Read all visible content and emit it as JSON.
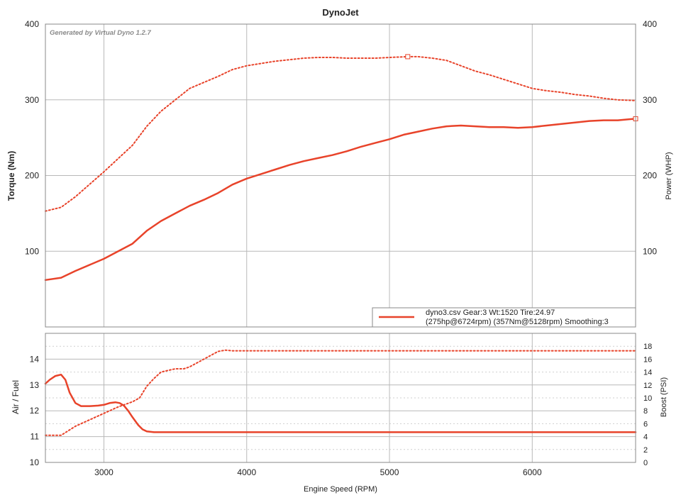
{
  "title": "DynoJet",
  "watermark": "Generated by Virtual Dyno 1.2.7",
  "colors": {
    "series": "#e8432a",
    "grid": "#b8b8b8",
    "frame": "#888888",
    "text": "#222222"
  },
  "legend": {
    "line1": "dyno3.csv Gear:3 Wt:1520 Tire:24.97",
    "line2": "(275hp@6724rpm) (357Nm@5128rpm) Smoothing:3"
  },
  "chart_data": [
    {
      "type": "line",
      "xlabel": "",
      "ylabel_left": "Torque (Nm)",
      "ylabel_right": "Power (WHP)",
      "xlim": [
        2590,
        6724
      ],
      "ylim_left": [
        0,
        400
      ],
      "ylim_right": [
        0,
        400
      ],
      "x_ticks": [
        3000,
        4000,
        5000,
        6000
      ],
      "y_ticks_left": [
        100,
        200,
        300,
        400
      ],
      "y_ticks_right": [
        100,
        200,
        300,
        400
      ],
      "grid": true,
      "legend_position": "bottom-right",
      "series": [
        {
          "axis": "right",
          "style": "solid",
          "x": [
            2590,
            2700,
            2800,
            3000,
            3200,
            3300,
            3400,
            3500,
            3600,
            3700,
            3800,
            3900,
            4000,
            4100,
            4200,
            4300,
            4400,
            4500,
            4600,
            4700,
            4800,
            4900,
            5000,
            5100,
            5200,
            5300,
            5400,
            5500,
            5600,
            5700,
            5800,
            5900,
            6000,
            6100,
            6200,
            6300,
            6400,
            6500,
            6600,
            6724
          ],
          "y": [
            62,
            65,
            74,
            90,
            110,
            127,
            140,
            150,
            160,
            168,
            177,
            188,
            196,
            202,
            208,
            214,
            219,
            223,
            227,
            232,
            238,
            243,
            248,
            254,
            258,
            262,
            265,
            266,
            265,
            264,
            264,
            263,
            264,
            266,
            268,
            270,
            272,
            273,
            273,
            275
          ]
        },
        {
          "axis": "left",
          "style": "dotted",
          "x": [
            2590,
            2700,
            2800,
            3000,
            3200,
            3300,
            3400,
            3500,
            3600,
            3700,
            3800,
            3900,
            4000,
            4100,
            4200,
            4300,
            4400,
            4500,
            4600,
            4700,
            4800,
            4900,
            5000,
            5128,
            5200,
            5300,
            5400,
            5500,
            5600,
            5700,
            5800,
            5900,
            6000,
            6100,
            6200,
            6300,
            6400,
            6500,
            6600,
            6724
          ],
          "y": [
            153,
            158,
            172,
            205,
            240,
            265,
            285,
            300,
            315,
            323,
            331,
            340,
            345,
            348,
            351,
            353,
            355,
            356,
            356,
            355,
            355,
            355,
            356,
            357,
            357,
            355,
            352,
            345,
            338,
            333,
            327,
            321,
            315,
            312,
            310,
            307,
            305,
            302,
            300,
            299
          ]
        }
      ],
      "markers": [
        {
          "series": 1,
          "x": 5128,
          "y": 357
        },
        {
          "series": 0,
          "x": 6724,
          "y": 275
        }
      ]
    },
    {
      "type": "line",
      "xlabel": "Engine Speed (RPM)",
      "ylabel_left": "Air / Fuel",
      "ylabel_right": "Boost (PSI)",
      "xlim": [
        2590,
        6724
      ],
      "ylim_left": [
        10,
        15
      ],
      "ylim_right": [
        0,
        20
      ],
      "x_ticks": [
        3000,
        4000,
        5000,
        6000
      ],
      "y_ticks_left": [
        10,
        11,
        12,
        13,
        14
      ],
      "y_ticks_right": [
        0,
        2,
        4,
        6,
        8,
        10,
        12,
        14,
        16,
        18
      ],
      "grid": true,
      "series": [
        {
          "axis": "left",
          "style": "solid",
          "x": [
            2590,
            2620,
            2660,
            2700,
            2730,
            2760,
            2800,
            2840,
            2900,
            2960,
            3000,
            3040,
            3080,
            3110,
            3140,
            3170,
            3200,
            3240,
            3270,
            3300,
            3350,
            3450,
            4000,
            5000,
            6000,
            6724
          ],
          "y": [
            13.05,
            13.2,
            13.35,
            13.4,
            13.2,
            12.7,
            12.3,
            12.18,
            12.18,
            12.2,
            12.23,
            12.3,
            12.33,
            12.3,
            12.2,
            12.0,
            11.75,
            11.45,
            11.28,
            11.2,
            11.17,
            11.17,
            11.17,
            11.17,
            11.17,
            11.17
          ]
        },
        {
          "axis": "right",
          "style": "dotted",
          "x": [
            2590,
            2700,
            2800,
            2900,
            3000,
            3100,
            3200,
            3250,
            3300,
            3350,
            3400,
            3500,
            3560,
            3600,
            3700,
            3800,
            3850,
            3900,
            4000,
            5000,
            6000,
            6724
          ],
          "y": [
            4.2,
            4.2,
            5.6,
            6.6,
            7.6,
            8.6,
            9.4,
            10.0,
            11.8,
            13.0,
            14.0,
            14.5,
            14.5,
            14.8,
            16.0,
            17.2,
            17.4,
            17.3,
            17.3,
            17.3,
            17.3,
            17.3
          ]
        }
      ]
    }
  ]
}
